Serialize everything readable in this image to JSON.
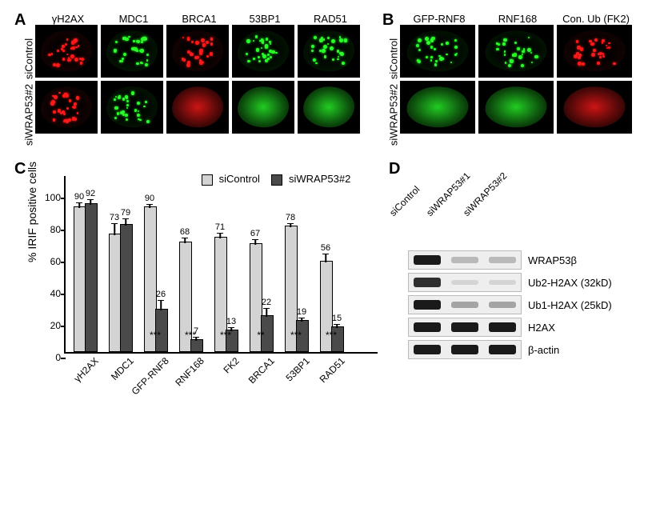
{
  "panelA": {
    "label": "A",
    "columns": [
      "γH2AX",
      "MDC1",
      "BRCA1",
      "53BP1",
      "RAD51"
    ],
    "rows": [
      "siControl",
      "siWRAP53#2"
    ],
    "cell_colors": [
      [
        "#ff1a1a",
        "#2aff2a",
        "#ff1a1a",
        "#2aff2a",
        "#2aff2a"
      ],
      [
        "#ff1a1a",
        "#2aff2a",
        "#ff1a1a",
        "#2aff2a",
        "#2aff2a"
      ]
    ],
    "has_foci": [
      [
        true,
        true,
        true,
        true,
        true
      ],
      [
        true,
        true,
        false,
        false,
        false
      ]
    ]
  },
  "panelB": {
    "label": "B",
    "columns": [
      "GFP-RNF8",
      "RNF168",
      "Con. Ub (FK2)"
    ],
    "rows": [
      "siControl",
      "siWRAP53#2"
    ],
    "cell_colors": [
      [
        "#2aff2a",
        "#2aff2a",
        "#ff1a1a"
      ],
      [
        "#2aff2a",
        "#2aff2a",
        "#ff1a1a"
      ]
    ],
    "has_foci": [
      [
        true,
        true,
        true
      ],
      [
        false,
        false,
        false
      ]
    ]
  },
  "panelC": {
    "label": "C",
    "ylabel": "% IRIF positive cells",
    "ymax": 110,
    "yticks": [
      0,
      20,
      40,
      60,
      80,
      100
    ],
    "legend": {
      "light": "siControl",
      "dark": "siWRAP53#2"
    },
    "light_color": "#d3d3d3",
    "dark_color": "#4a4a4a",
    "categories": [
      "γH2AX",
      "MDC1",
      "GFP-RNF8",
      "RNF168",
      "FK2",
      "BRCA1",
      "53BP1",
      "RAD51"
    ],
    "control": [
      90,
      73,
      90,
      68,
      71,
      67,
      78,
      56
    ],
    "knockdown": [
      92,
      79,
      26,
      7,
      13,
      22,
      19,
      15
    ],
    "err_ctrl": [
      3,
      7,
      2,
      3,
      3,
      3,
      2,
      5
    ],
    "err_kd": [
      3,
      4,
      6,
      2,
      2,
      5,
      2,
      2
    ],
    "sig": [
      "",
      "",
      "***",
      "***",
      "***",
      "**",
      "***",
      "***"
    ]
  },
  "panelD": {
    "label": "D",
    "lanes": [
      "siControl",
      "siWRAP53#1",
      "siWRAP53#2"
    ],
    "rows": [
      {
        "name": "WRAP53β",
        "intensity": [
          1.0,
          0.25,
          0.25
        ]
      },
      {
        "name": "Ub2-H2AX (32kD)",
        "intensity": [
          0.9,
          0.12,
          0.12
        ]
      },
      {
        "name": "Ub1-H2AX (25kD)",
        "intensity": [
          1.0,
          0.35,
          0.35
        ]
      },
      {
        "name": "H2AX",
        "intensity": [
          1.0,
          1.0,
          1.0
        ]
      },
      {
        "name": "β-actin",
        "intensity": [
          1.0,
          1.0,
          1.0
        ]
      }
    ]
  }
}
